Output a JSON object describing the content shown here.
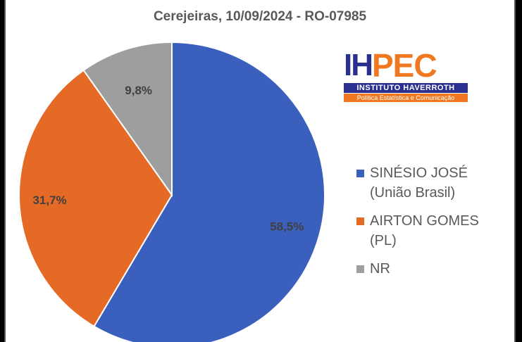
{
  "chart_data": {
    "type": "pie",
    "title": "Cerejeiras,  10/09/2024 - RO-07985",
    "categories": [
      "SINÉSIO JOSÉ (União Brasil)",
      "AIRTON GOMES (PL)",
      "NR"
    ],
    "values": [
      58.5,
      31.7,
      9.8
    ],
    "value_labels": [
      "58,5%",
      "31,7%",
      "9,8%"
    ],
    "colors": [
      "#3a5fbd",
      "#e46a25",
      "#9e9e9e"
    ],
    "legend_position": "right"
  },
  "legend": {
    "items": [
      {
        "line1": "SINÉSIO JOSÉ",
        "line2": "(União Brasil)",
        "color": "#3a5fbd"
      },
      {
        "line1": "AIRTON GOMES",
        "line2": "(PL)",
        "color": "#e46a25"
      },
      {
        "line1": "NR",
        "line2": "",
        "color": "#9e9e9e"
      }
    ]
  },
  "logo": {
    "ih": "IH",
    "pec": "PEC",
    "line1": "INSTITUTO HAVERROTH",
    "line2": "Política Estatística e Comunicação"
  }
}
